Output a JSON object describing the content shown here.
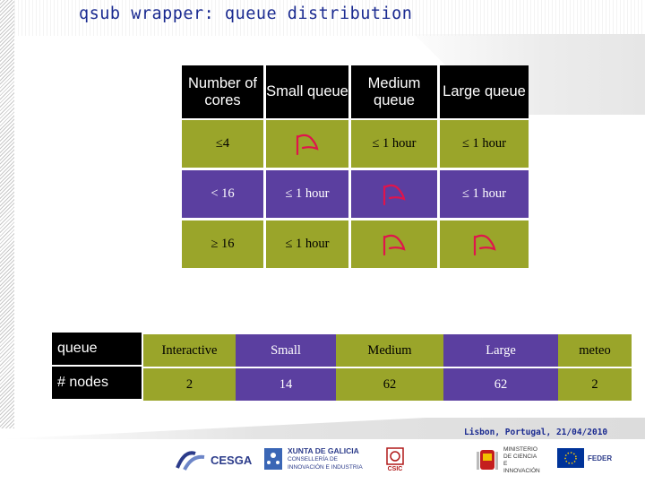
{
  "slide": {
    "title": "qsub wrapper: queue distribution",
    "footer": "Lisbon, Portugal, 21/04/2010"
  },
  "table": {
    "headers": [
      "Number of cores",
      "Small queue",
      "Medium queue",
      "Large queue"
    ],
    "rows": [
      {
        "cores": "≤4",
        "small": "flag",
        "medium": "≤ 1 hour",
        "large": "≤ 1 hour"
      },
      {
        "cores": "< 16",
        "small": "≤ 1 hour",
        "medium": "flag",
        "large": "≤ 1 hour"
      },
      {
        "cores": "≥ 16",
        "small": "≤ 1 hour",
        "medium": "flag",
        "large": "flag"
      }
    ]
  },
  "bottom_table": {
    "row_labels": [
      "queue",
      "# nodes"
    ],
    "queues": [
      "Interactive",
      "Small",
      "Medium",
      "Large",
      "meteo"
    ],
    "nodes": [
      "2",
      "14",
      "62",
      "62",
      "2"
    ]
  },
  "logos": {
    "cesga": "CESGA",
    "xunta": "XUNTA DE GALICIA",
    "xunta_sub": "CONSELLERÍA DE INNOVACIÓN E INDUSTRIA",
    "csic": "CSIC",
    "ministerio": "MINISTERIO DE CIENCIA E INNOVACIÓN",
    "feder": "FEDER"
  },
  "colors": {
    "olive": "#9aa52a",
    "purple": "#5b3fa0",
    "header": "#000000",
    "flag": "#e0144c",
    "title": "#1a2a90"
  }
}
